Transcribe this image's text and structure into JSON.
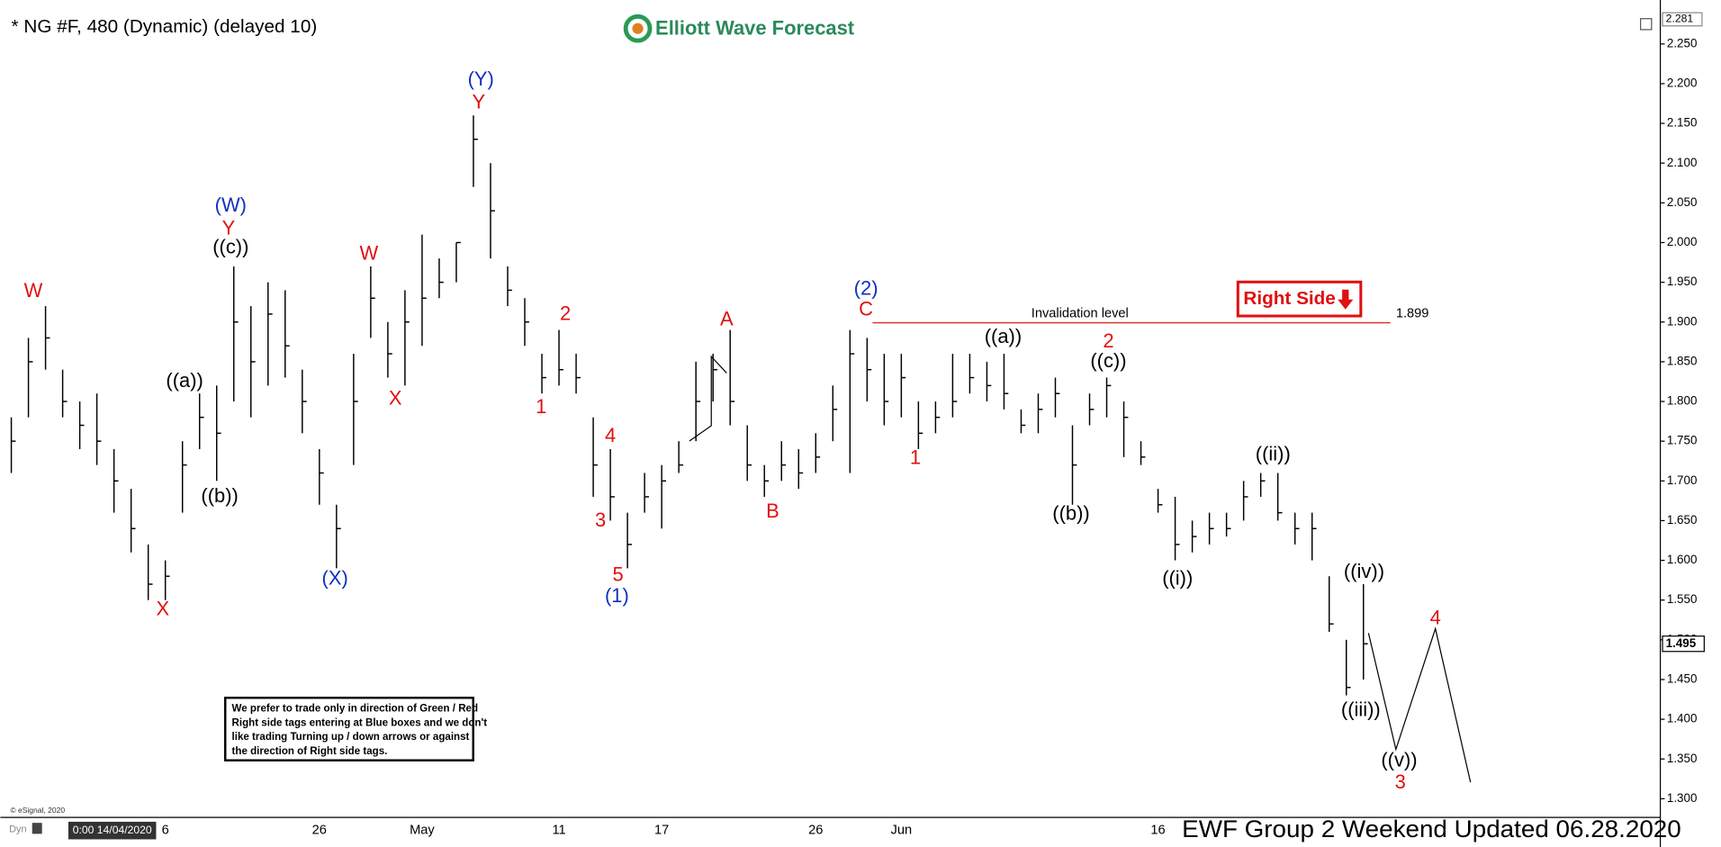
{
  "chart_data": {
    "type": "ohlc",
    "title": "* NG #F, 480 (Dynamic) (delayed 10)",
    "logo": "Elliott Wave Forecast",
    "footer": "EWF Group 2 Weekend Updated 06.28.2020",
    "start_label": "0:00 14/04/2020",
    "mode_label": "Dyn",
    "source": "© eSignal, 2020",
    "color": "#000000",
    "categories": [
      null,
      null,
      null,
      null,
      null,
      null,
      null,
      null,
      null,
      "6",
      null,
      null,
      null,
      null,
      null,
      null,
      null,
      null,
      "26",
      null,
      null,
      null,
      null,
      null,
      "May",
      null,
      null,
      null,
      null,
      null,
      null,
      null,
      "11",
      null,
      null,
      null,
      null,
      null,
      "17",
      null,
      null,
      null,
      null,
      null,
      null,
      null,
      null,
      "26",
      null,
      null,
      null,
      null,
      "Jun",
      null,
      null,
      null,
      null,
      null,
      null,
      null,
      null,
      null,
      null,
      null,
      null,
      null,
      null,
      "16",
      null,
      null,
      null,
      null,
      null,
      null,
      null,
      null,
      null,
      null,
      null,
      null
    ],
    "high": [
      1.78,
      1.88,
      1.92,
      1.84,
      1.8,
      1.81,
      1.74,
      1.69,
      1.62,
      1.6,
      1.75,
      1.81,
      1.82,
      1.97,
      1.92,
      1.95,
      1.94,
      1.84,
      1.74,
      1.67,
      1.86,
      1.97,
      1.9,
      1.94,
      2.01,
      1.98,
      2.0,
      2.16,
      2.1,
      1.97,
      1.93,
      1.86,
      1.89,
      1.86,
      1.78,
      1.74,
      1.66,
      1.71,
      1.72,
      1.75,
      1.85,
      1.86,
      1.89,
      1.77,
      1.72,
      1.75,
      1.74,
      1.76,
      1.82,
      1.89,
      1.88,
      1.86,
      1.86,
      1.8,
      1.8,
      1.86,
      1.86,
      1.85,
      1.86,
      1.79,
      1.81,
      1.83,
      1.77,
      1.81,
      1.83,
      1.8,
      1.75,
      1.69,
      1.68,
      1.65,
      1.66,
      1.66,
      1.7,
      1.71,
      1.71,
      1.66,
      1.66,
      1.58,
      1.5,
      1.57
    ],
    "low": [
      1.71,
      1.78,
      1.84,
      1.78,
      1.74,
      1.72,
      1.66,
      1.61,
      1.55,
      1.55,
      1.66,
      1.74,
      1.7,
      1.8,
      1.78,
      1.82,
      1.83,
      1.76,
      1.67,
      1.59,
      1.72,
      1.88,
      1.83,
      1.82,
      1.87,
      1.93,
      1.95,
      2.07,
      1.98,
      1.92,
      1.87,
      1.81,
      1.82,
      1.81,
      1.68,
      1.65,
      1.59,
      1.66,
      1.64,
      1.71,
      1.75,
      1.8,
      1.77,
      1.7,
      1.68,
      1.7,
      1.69,
      1.71,
      1.75,
      1.71,
      1.8,
      1.77,
      1.78,
      1.74,
      1.76,
      1.78,
      1.81,
      1.8,
      1.79,
      1.76,
      1.76,
      1.78,
      1.67,
      1.77,
      1.78,
      1.73,
      1.72,
      1.66,
      1.6,
      1.61,
      1.62,
      1.63,
      1.65,
      1.68,
      1.65,
      1.62,
      1.6,
      1.51,
      1.43,
      1.45
    ],
    "close": [
      1.75,
      1.85,
      1.88,
      1.8,
      1.77,
      1.75,
      1.7,
      1.64,
      1.57,
      1.58,
      1.72,
      1.78,
      1.76,
      1.9,
      1.85,
      1.91,
      1.87,
      1.8,
      1.71,
      1.64,
      1.8,
      1.93,
      1.86,
      1.9,
      1.93,
      1.95,
      2.0,
      2.13,
      2.04,
      1.94,
      1.9,
      1.83,
      1.84,
      1.83,
      1.72,
      1.68,
      1.62,
      1.68,
      1.7,
      1.72,
      1.8,
      1.84,
      1.8,
      1.72,
      1.7,
      1.72,
      1.71,
      1.73,
      1.79,
      1.86,
      1.84,
      1.8,
      1.83,
      1.76,
      1.78,
      1.8,
      1.83,
      1.82,
      1.81,
      1.77,
      1.79,
      1.81,
      1.72,
      1.79,
      1.82,
      1.78,
      1.73,
      1.67,
      1.62,
      1.63,
      1.64,
      1.64,
      1.68,
      1.7,
      1.66,
      1.64,
      1.64,
      1.52,
      1.44,
      1.495
    ],
    "ylim": [
      1.2765,
      2.3053
    ],
    "yticks": [
      {
        "value": 1.3,
        "label": "1.300"
      },
      {
        "value": 1.35,
        "label": "1.350"
      },
      {
        "value": 1.4,
        "label": "1.400"
      },
      {
        "value": 1.45,
        "label": "1.450"
      },
      {
        "value": 1.5,
        "label": "1.500"
      },
      {
        "value": 1.55,
        "label": "1.550"
      },
      {
        "value": 1.6,
        "label": "1.600"
      },
      {
        "value": 1.65,
        "label": "1.650"
      },
      {
        "value": 1.7,
        "label": "1.700"
      },
      {
        "value": 1.75,
        "label": "1.750"
      },
      {
        "value": 1.8,
        "label": "1.800"
      },
      {
        "value": 1.85,
        "label": "1.850"
      },
      {
        "value": 1.9,
        "label": "1.900"
      },
      {
        "value": 1.95,
        "label": "1.950"
      },
      {
        "value": 2.0,
        "label": "2.000"
      },
      {
        "value": 2.05,
        "label": "2.050"
      },
      {
        "value": 2.1,
        "label": "2.100"
      },
      {
        "value": 2.15,
        "label": "2.150"
      },
      {
        "value": 2.2,
        "label": "2.200"
      },
      {
        "value": 2.25,
        "label": "2.250"
      }
    ],
    "high_marker": 2.281,
    "last_price": 1.495,
    "invalidation": {
      "label": "Invalidation level",
      "value": 1.899,
      "color": "#e02020"
    },
    "right_side_tag": "Right Side",
    "note": [
      "We prefer to trade only in direction of Green / Red",
      "Right side tags entering at Blue boxes and we don't",
      "like trading Turning up / down arrows or against",
      "the direction of Right side tags."
    ],
    "annotations": [
      {
        "text": "W",
        "color": "#e01010"
      },
      {
        "text": "X",
        "color": "#e01010"
      },
      {
        "text": "((a))",
        "color": "#000000"
      },
      {
        "text": "((b))",
        "color": "#000000"
      },
      {
        "text": "((c))",
        "color": "#000000"
      },
      {
        "text": "Y",
        "color": "#e01010"
      },
      {
        "text": "(W)",
        "color": "#1030c0"
      },
      {
        "text": "(X)",
        "color": "#1030c0"
      },
      {
        "text": "W",
        "color": "#e01010"
      },
      {
        "text": "X",
        "color": "#e01010"
      },
      {
        "text": "Y",
        "color": "#e01010"
      },
      {
        "text": "(Y)",
        "color": "#1030c0"
      },
      {
        "text": "1",
        "color": "#e01010"
      },
      {
        "text": "2",
        "color": "#e01010"
      },
      {
        "text": "3",
        "color": "#e01010"
      },
      {
        "text": "4",
        "color": "#e01010"
      },
      {
        "text": "5",
        "color": "#e01010"
      },
      {
        "text": "(1)",
        "color": "#1030c0"
      },
      {
        "text": "A",
        "color": "#e01010"
      },
      {
        "text": "B",
        "color": "#e01010"
      },
      {
        "text": "C",
        "color": "#e01010"
      },
      {
        "text": "(2)",
        "color": "#1030c0"
      },
      {
        "text": "1",
        "color": "#e01010"
      },
      {
        "text": "((a))",
        "color": "#000000"
      },
      {
        "text": "((b))",
        "color": "#000000"
      },
      {
        "text": "2",
        "color": "#e01010"
      },
      {
        "text": "((c))",
        "color": "#000000"
      },
      {
        "text": "((i))",
        "color": "#000000"
      },
      {
        "text": "((ii))",
        "color": "#000000"
      },
      {
        "text": "((iv))",
        "color": "#000000"
      },
      {
        "text": "((iii))",
        "color": "#000000"
      },
      {
        "text": "((v))",
        "color": "#000000"
      },
      {
        "text": "3",
        "color": "#e01010"
      },
      {
        "text": "4",
        "color": "#e01010"
      }
    ]
  }
}
